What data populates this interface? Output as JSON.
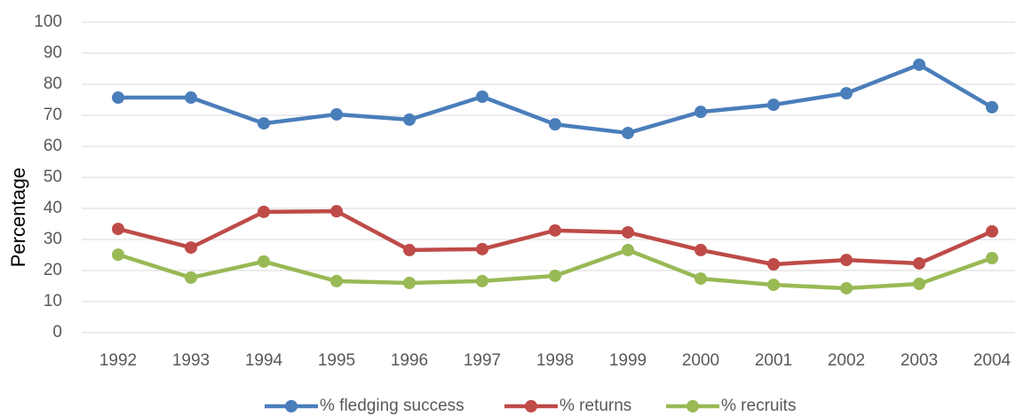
{
  "chart_data": {
    "type": "line",
    "y_label": "Percentage",
    "categories": [
      "1992",
      "1993",
      "1994",
      "1995",
      "1996",
      "1997",
      "1998",
      "1999",
      "2000",
      "2001",
      "2002",
      "2003",
      "2004"
    ],
    "series": [
      {
        "name": "% fledging success",
        "color": "#4a7ebb",
        "values": [
          75.7,
          75.7,
          67.4,
          70.3,
          68.6,
          76,
          67.1,
          64.3,
          71.1,
          73.4,
          77.1,
          86.3,
          72.6
        ]
      },
      {
        "name": "% returns",
        "color": "#be4b48",
        "values": [
          33.4,
          27.4,
          38.9,
          39.1,
          26.6,
          26.9,
          32.9,
          32.3,
          26.6,
          22,
          23.4,
          22.3,
          32.6
        ]
      },
      {
        "name": "% recruits",
        "color": "#98b954",
        "values": [
          25.1,
          17.7,
          22.9,
          16.6,
          16,
          16.6,
          18.3,
          26.6,
          17.4,
          15.4,
          14.3,
          15.7,
          24
        ]
      }
    ],
    "ylim": [
      0,
      100
    ],
    "yticks": [
      0,
      10,
      20,
      30,
      40,
      50,
      60,
      70,
      80,
      90,
      100
    ],
    "grid": true,
    "legend": "bottom"
  }
}
